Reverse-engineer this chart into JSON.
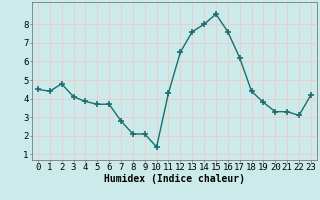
{
  "x": [
    0,
    1,
    2,
    3,
    4,
    5,
    6,
    7,
    8,
    9,
    10,
    11,
    12,
    13,
    14,
    15,
    16,
    17,
    18,
    19,
    20,
    21,
    22,
    23
  ],
  "y": [
    4.5,
    4.4,
    4.8,
    4.1,
    3.85,
    3.7,
    3.7,
    2.8,
    2.1,
    2.1,
    1.4,
    4.3,
    6.5,
    7.6,
    8.0,
    8.55,
    7.6,
    6.2,
    4.4,
    3.8,
    3.3,
    3.3,
    3.1,
    4.2
  ],
  "line_color": "#1a6e6e",
  "marker": "+",
  "marker_size": 4,
  "bg_color": "#cceaea",
  "grid_color": "#f0c8c8",
  "xlabel": "Humidex (Indice chaleur)",
  "xlabel_fontsize": 7,
  "yticks": [
    1,
    2,
    3,
    4,
    5,
    6,
    7,
    8
  ],
  "xticks": [
    0,
    1,
    2,
    3,
    4,
    5,
    6,
    7,
    8,
    9,
    10,
    11,
    12,
    13,
    14,
    15,
    16,
    17,
    18,
    19,
    20,
    21,
    22,
    23
  ],
  "ylim": [
    0.7,
    9.2
  ],
  "xlim": [
    -0.5,
    23.5
  ],
  "tick_fontsize": 6.5
}
